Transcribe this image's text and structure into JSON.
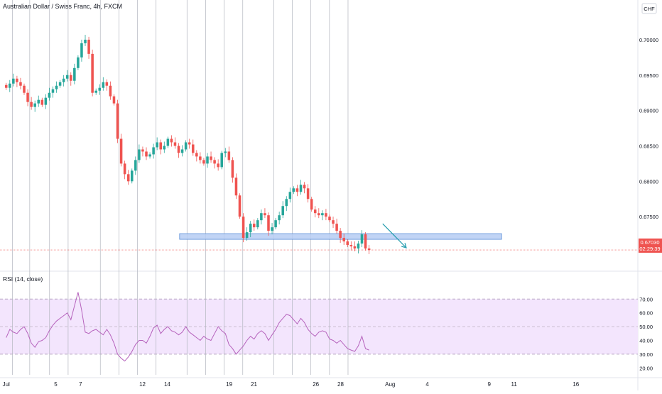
{
  "header": {
    "symbol_title": "Australian Dollar / Swiss Franc, 4h, FXCM",
    "currency_badge": "CHF"
  },
  "price_label": {
    "price": "0.67030",
    "countdown": "02:29:39"
  },
  "rsi_label": "RSI (14, close)",
  "colors": {
    "up": "#26a69a",
    "down": "#ef5350",
    "rsi_line": "#b562bc",
    "rsi_band": "#f3e5fd",
    "zone_fill": "#b6cdf3",
    "zone_stroke": "#5b8fd9",
    "arrow": "#2a9fb0",
    "last_price": "#ef5350",
    "grid_event": "#b2b5be"
  },
  "chart_data": [
    {
      "type": "candlestick",
      "ylim": [
        0.6685,
        0.7028
      ],
      "y_ticks": [
        "0.70000",
        "0.69500",
        "0.69000",
        "0.68500",
        "0.68000",
        "0.67500"
      ],
      "y_tick_values": [
        0.7,
        0.695,
        0.69,
        0.685,
        0.68,
        0.675
      ],
      "x_ticks": [
        "Jul",
        "5",
        "7",
        "12",
        "14",
        "19",
        "21",
        "26",
        "28",
        "Aug",
        "4",
        "9",
        "11",
        "16"
      ],
      "x_tick_days": [
        1,
        5,
        7,
        12,
        14,
        19,
        21,
        26,
        28,
        32,
        35,
        40,
        42,
        47
      ],
      "xlim_days": [
        0.5,
        52
      ],
      "event_line_days": [
        1.5,
        2.9,
        4.5,
        6.0,
        8.6,
        10.1,
        11.6,
        13.1,
        15.6,
        17.1,
        18.6,
        20.1,
        22.6,
        24.1,
        25.6,
        27.1,
        28.6
      ],
      "close_series": [
        0.6932,
        0.6938,
        0.6945,
        0.694,
        0.6935,
        0.6925,
        0.6912,
        0.6905,
        0.691,
        0.6915,
        0.6908,
        0.6918,
        0.6925,
        0.693,
        0.6935,
        0.694,
        0.6945,
        0.695,
        0.6942,
        0.696,
        0.6975,
        0.6995,
        0.7,
        0.698,
        0.6925,
        0.6928,
        0.6932,
        0.694,
        0.6935,
        0.692,
        0.691,
        0.686,
        0.6825,
        0.681,
        0.68,
        0.6815,
        0.683,
        0.6845,
        0.6842,
        0.6835,
        0.6838,
        0.6848,
        0.6855,
        0.6845,
        0.685,
        0.686,
        0.6855,
        0.685,
        0.684,
        0.6845,
        0.6855,
        0.6852,
        0.684,
        0.6835,
        0.683,
        0.6825,
        0.6835,
        0.683,
        0.6825,
        0.682,
        0.684,
        0.6842,
        0.683,
        0.6805,
        0.678,
        0.675,
        0.672,
        0.6728,
        0.674,
        0.6735,
        0.6745,
        0.6755,
        0.6752,
        0.673,
        0.6735,
        0.6745,
        0.6752,
        0.6765,
        0.6775,
        0.6785,
        0.679,
        0.6785,
        0.6795,
        0.679,
        0.6775,
        0.676,
        0.6755,
        0.6752,
        0.6755,
        0.675,
        0.6745,
        0.674,
        0.673,
        0.672,
        0.6715,
        0.671,
        0.6708,
        0.6705,
        0.6712,
        0.6725,
        0.6705,
        0.6703
      ],
      "support_zone": {
        "from": 0.6718,
        "to": 0.6726
      },
      "last_price": 0.6703
    },
    {
      "type": "line",
      "name": "RSI (14, close)",
      "ylim": [
        15,
        82
      ],
      "y_ticks": [
        "70.00",
        "60.00",
        "50.00",
        "40.00",
        "30.00",
        "20.00"
      ],
      "y_tick_values": [
        70,
        60,
        50,
        40,
        30,
        20
      ],
      "band": [
        30,
        70
      ],
      "midline": 50,
      "values": [
        42,
        48,
        46,
        45,
        48,
        50,
        45,
        38,
        35,
        39,
        40,
        42,
        47,
        51,
        54,
        56,
        58,
        60,
        55,
        65,
        75,
        62,
        46,
        45,
        47,
        48,
        46,
        44,
        48,
        44,
        38,
        30,
        27,
        25,
        28,
        32,
        37,
        40,
        40,
        38,
        43,
        49,
        51,
        45,
        48,
        50,
        47,
        46,
        44,
        46,
        50,
        46,
        44,
        42,
        40,
        43,
        41,
        40,
        45,
        50,
        47,
        45,
        37,
        34,
        30,
        33,
        36,
        40,
        43,
        41,
        45,
        47,
        45,
        40,
        44,
        48,
        53,
        56,
        59,
        58,
        55,
        52,
        56,
        53,
        48,
        45,
        43,
        46,
        47,
        46,
        41,
        40,
        38,
        40,
        37,
        34,
        33,
        32,
        36,
        43,
        34,
        33
      ]
    }
  ]
}
